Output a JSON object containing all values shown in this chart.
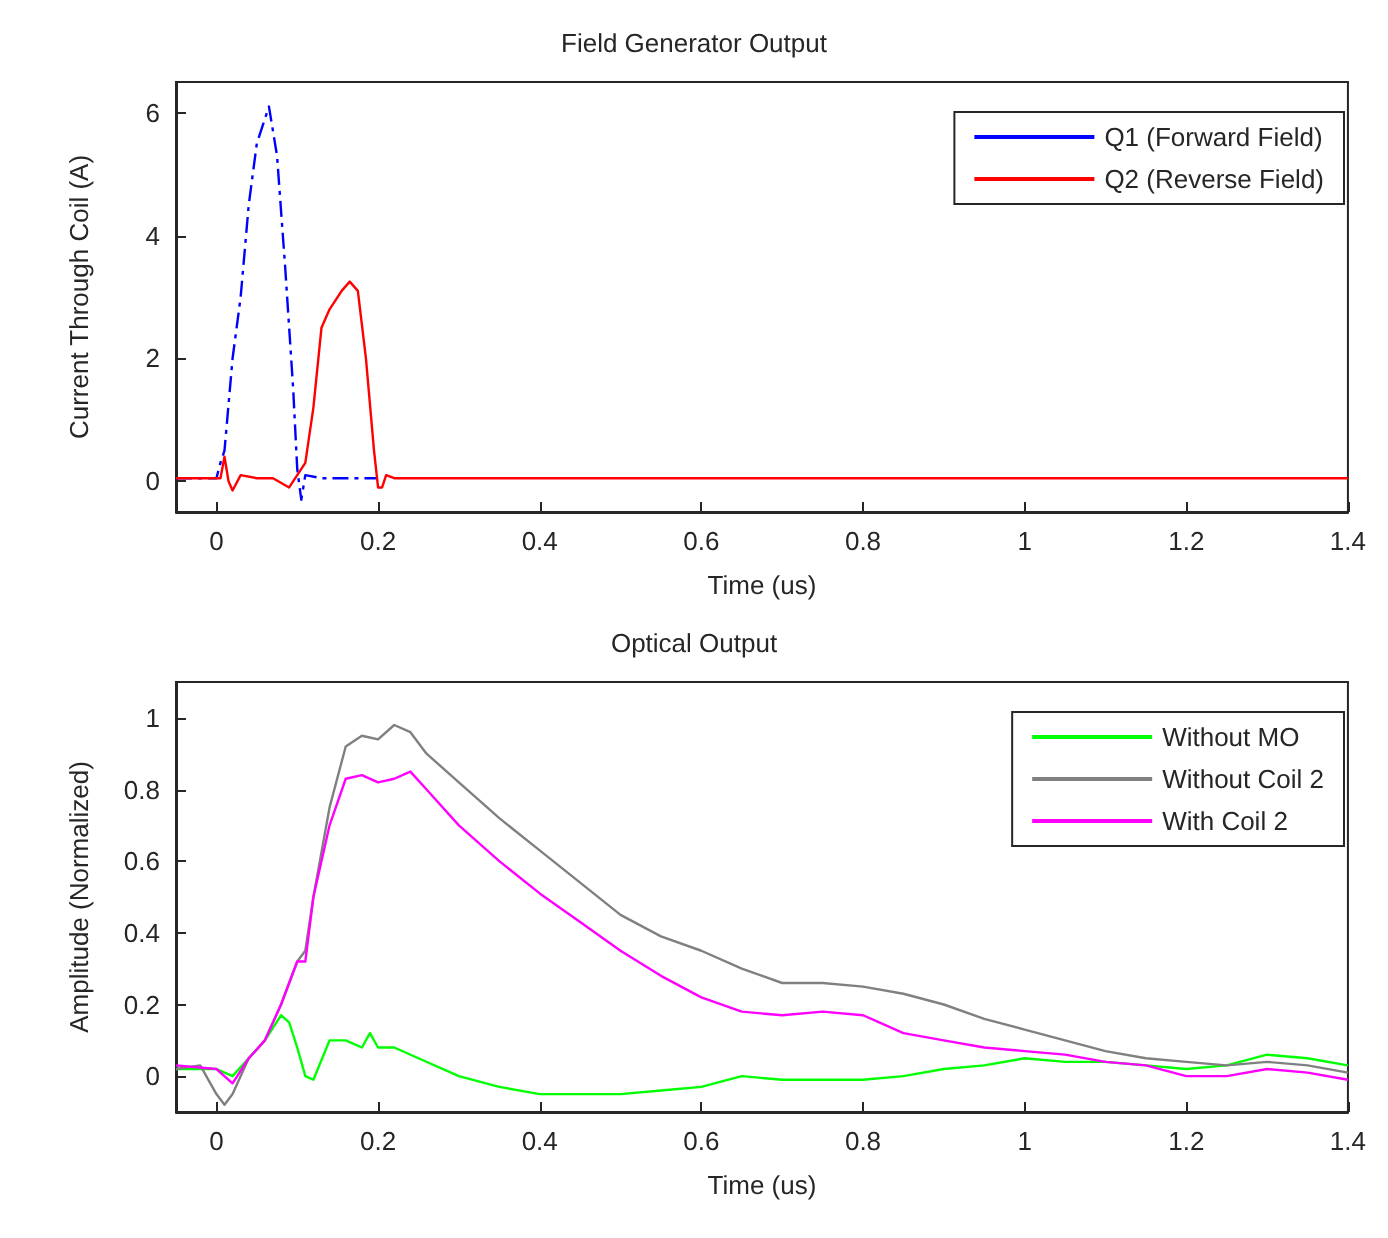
{
  "chart_data": [
    {
      "type": "line",
      "title": "Field Generator Output",
      "xlabel": "Time (us)",
      "ylabel": "Current Through Coil (A)",
      "xlim": [
        -0.05,
        1.4
      ],
      "xticks": [
        0,
        0.2,
        0.4,
        0.6,
        0.8,
        1,
        1.2,
        1.4
      ],
      "ylim": [
        -0.5,
        6.5
      ],
      "yticks": [
        0,
        2,
        4,
        6
      ],
      "grid": false,
      "legend": "top right",
      "marker": "none",
      "series": [
        {
          "name": "Q1 (Forward Field)",
          "color": "#0000ff",
          "line_style": "dashed",
          "x": [
            -0.05,
            0,
            0.005,
            0.01,
            0.02,
            0.03,
            0.04,
            0.05,
            0.065,
            0.075,
            0.085,
            0.095,
            0.1,
            0.105,
            0.11,
            0.13,
            0.2
          ],
          "values": [
            0.05,
            0.05,
            0.3,
            0.5,
            2,
            3,
            4.5,
            5.5,
            6.1,
            5.3,
            3.5,
            1.5,
            0.2,
            -0.3,
            0.1,
            0.05,
            0.05
          ]
        },
        {
          "name": "Q2 (Reverse Field)",
          "color": "#ff0000",
          "line_style": "solid",
          "x": [
            -0.05,
            0.005,
            0.01,
            0.015,
            0.02,
            0.03,
            0.05,
            0.07,
            0.09,
            0.1,
            0.11,
            0.12,
            0.13,
            0.14,
            0.155,
            0.165,
            0.175,
            0.185,
            0.195,
            0.2,
            0.205,
            0.21,
            0.22,
            0.6,
            1.0,
            1.4
          ],
          "values": [
            0.05,
            0.05,
            0.4,
            0,
            -0.15,
            0.1,
            0.05,
            0.05,
            -0.1,
            0.1,
            0.3,
            1.2,
            2.5,
            2.8,
            3.1,
            3.25,
            3.1,
            2,
            0.5,
            -0.1,
            -0.1,
            0.1,
            0.05,
            0.05,
            0.05,
            0.05
          ]
        }
      ]
    },
    {
      "type": "line",
      "title": "Optical Output",
      "xlabel": "Time (us)",
      "ylabel": "Amplitude (Normalized)",
      "xlim": [
        -0.05,
        1.4
      ],
      "xticks": [
        0,
        0.2,
        0.4,
        0.6,
        0.8,
        1,
        1.2,
        1.4
      ],
      "ylim": [
        -0.1,
        1.1
      ],
      "yticks": [
        0,
        0.2,
        0.4,
        0.6,
        0.8,
        1
      ],
      "grid": false,
      "legend": "top right",
      "marker": "none",
      "series": [
        {
          "name": "Without MO",
          "color": "#00ff00",
          "x": [
            -0.05,
            0,
            0.02,
            0.04,
            0.06,
            0.08,
            0.09,
            0.1,
            0.11,
            0.12,
            0.14,
            0.16,
            0.18,
            0.19,
            0.2,
            0.22,
            0.25,
            0.3,
            0.35,
            0.4,
            0.45,
            0.5,
            0.55,
            0.6,
            0.65,
            0.7,
            0.75,
            0.8,
            0.85,
            0.9,
            0.95,
            1.0,
            1.05,
            1.1,
            1.15,
            1.2,
            1.25,
            1.3,
            1.35,
            1.4
          ],
          "values": [
            0.02,
            0.02,
            0.0,
            0.05,
            0.1,
            0.17,
            0.15,
            0.08,
            0.0,
            -0.01,
            0.1,
            0.1,
            0.08,
            0.12,
            0.08,
            0.08,
            0.05,
            0.0,
            -0.03,
            -0.05,
            -0.05,
            -0.05,
            -0.04,
            -0.03,
            0.0,
            -0.01,
            -0.01,
            -0.01,
            0.0,
            0.02,
            0.03,
            0.05,
            0.04,
            0.04,
            0.03,
            0.02,
            0.03,
            0.06,
            0.05,
            0.03
          ]
        },
        {
          "name": "Without Coil 2",
          "color": "#808080",
          "x": [
            -0.05,
            -0.02,
            0,
            0.01,
            0.02,
            0.04,
            0.06,
            0.08,
            0.1,
            0.11,
            0.12,
            0.14,
            0.16,
            0.18,
            0.2,
            0.22,
            0.24,
            0.26,
            0.3,
            0.35,
            0.4,
            0.45,
            0.5,
            0.55,
            0.6,
            0.65,
            0.7,
            0.75,
            0.8,
            0.85,
            0.9,
            0.95,
            1.0,
            1.05,
            1.1,
            1.15,
            1.2,
            1.25,
            1.3,
            1.35,
            1.4
          ],
          "values": [
            0.02,
            0.03,
            -0.05,
            -0.08,
            -0.05,
            0.05,
            0.1,
            0.2,
            0.32,
            0.35,
            0.5,
            0.75,
            0.92,
            0.95,
            0.94,
            0.98,
            0.96,
            0.9,
            0.82,
            0.72,
            0.63,
            0.54,
            0.45,
            0.39,
            0.35,
            0.3,
            0.26,
            0.26,
            0.25,
            0.23,
            0.2,
            0.16,
            0.13,
            0.1,
            0.07,
            0.05,
            0.04,
            0.03,
            0.04,
            0.03,
            0.01
          ]
        },
        {
          "name": "With Coil 2",
          "color": "#ff00ff",
          "x": [
            -0.05,
            0,
            0.02,
            0.04,
            0.06,
            0.08,
            0.1,
            0.11,
            0.12,
            0.14,
            0.16,
            0.18,
            0.2,
            0.22,
            0.24,
            0.26,
            0.3,
            0.35,
            0.4,
            0.45,
            0.5,
            0.55,
            0.6,
            0.65,
            0.7,
            0.75,
            0.8,
            0.85,
            0.9,
            0.95,
            1.0,
            1.05,
            1.1,
            1.15,
            1.2,
            1.25,
            1.3,
            1.35,
            1.4
          ],
          "values": [
            0.03,
            0.02,
            -0.02,
            0.05,
            0.1,
            0.2,
            0.32,
            0.32,
            0.5,
            0.7,
            0.83,
            0.84,
            0.82,
            0.83,
            0.85,
            0.8,
            0.7,
            0.6,
            0.51,
            0.43,
            0.35,
            0.28,
            0.22,
            0.18,
            0.17,
            0.18,
            0.17,
            0.12,
            0.1,
            0.08,
            0.07,
            0.06,
            0.04,
            0.03,
            0.0,
            0.0,
            0.02,
            0.01,
            -0.01
          ]
        }
      ]
    }
  ]
}
